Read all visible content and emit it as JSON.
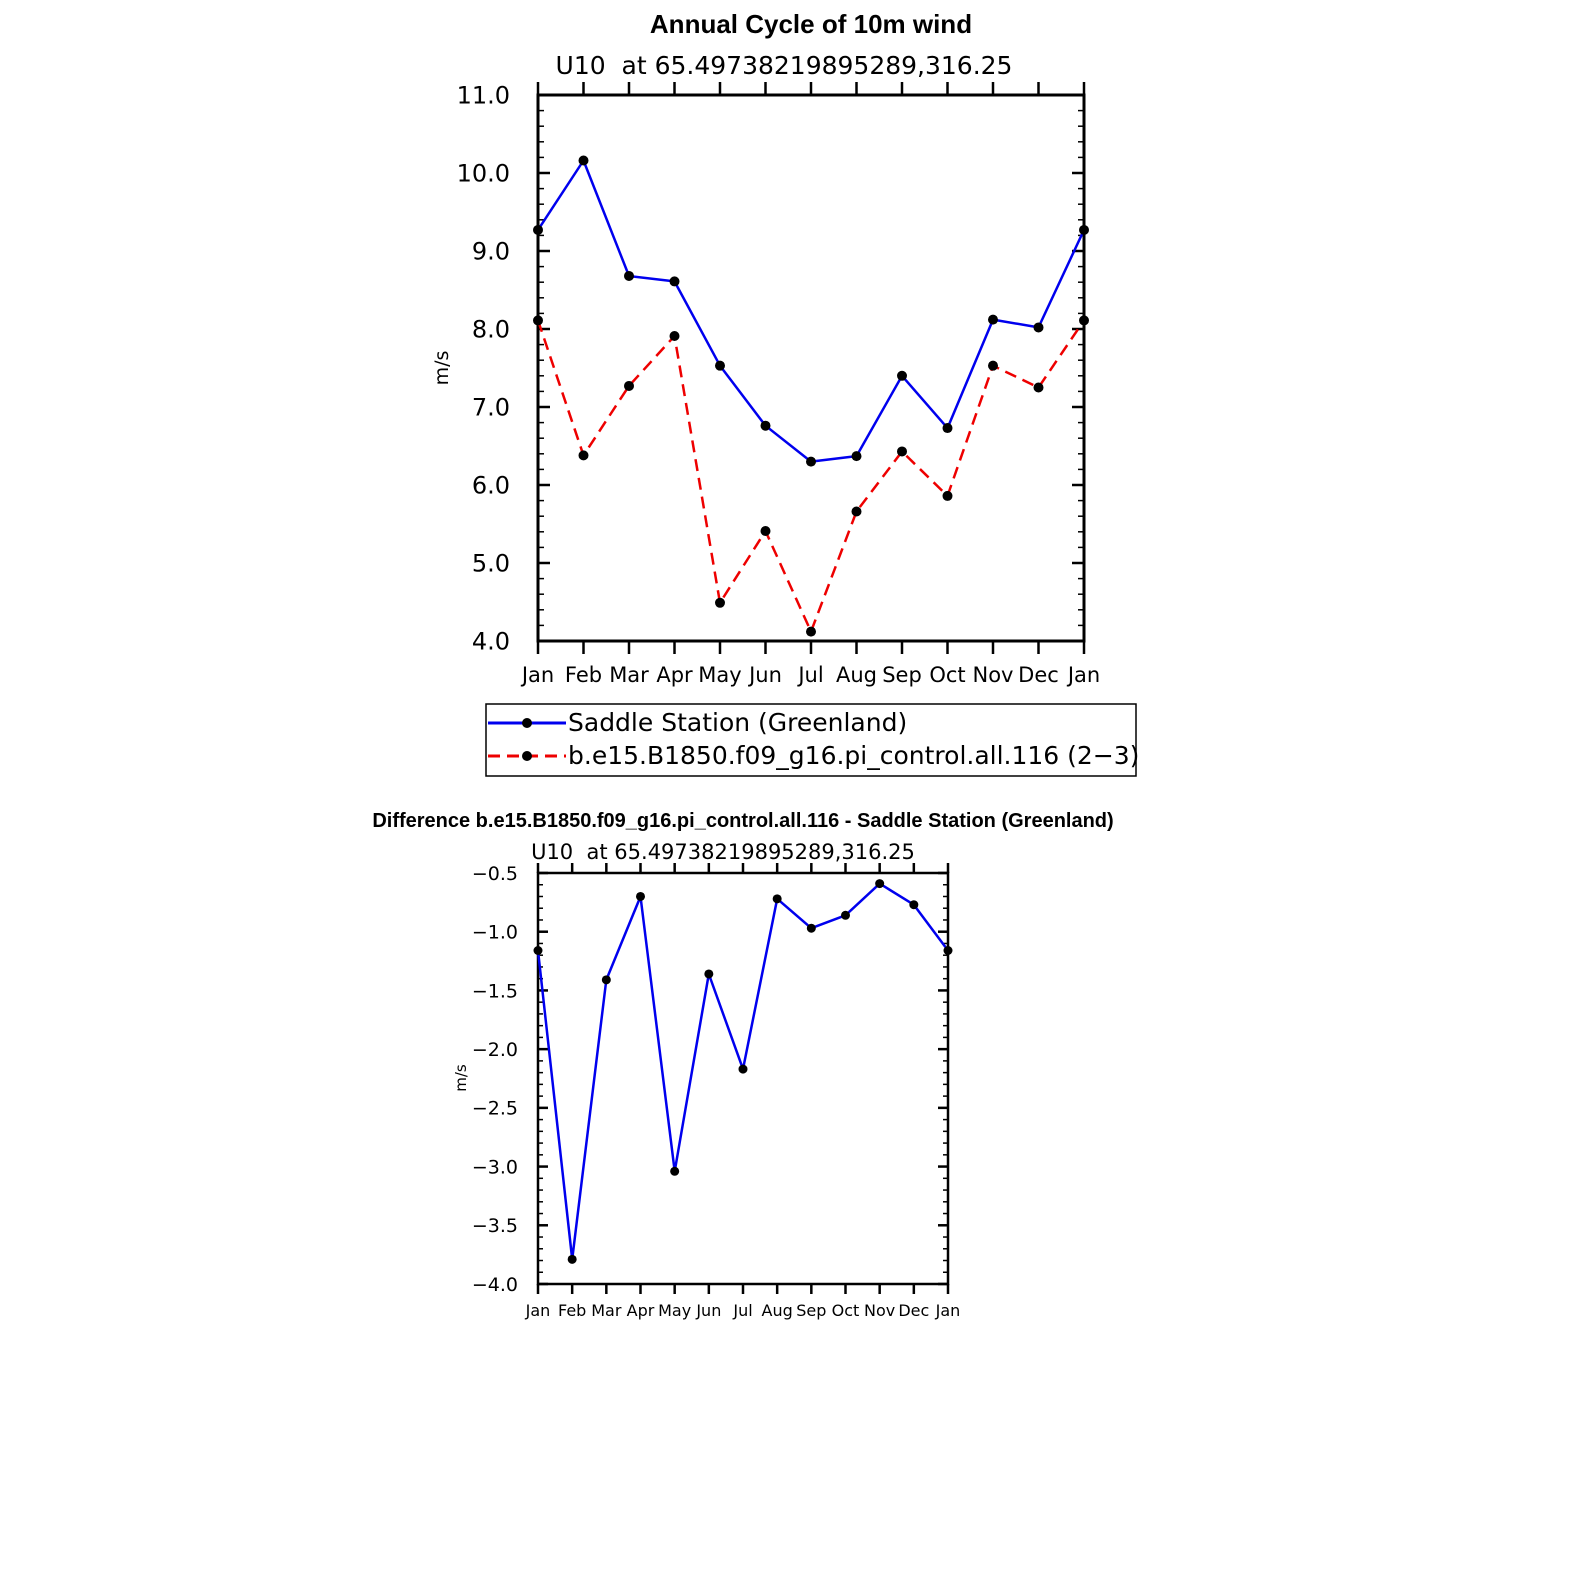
{
  "chart_data": [
    {
      "type": "line",
      "title": "Annual Cycle of 10m wind",
      "subtitle": "U10  at 65.49738219895289,316.25",
      "ylabel": "m/s",
      "xlabel": "",
      "ylim": [
        4.0,
        11.0
      ],
      "y_ticks": [
        "4.0",
        "5.0",
        "6.0",
        "7.0",
        "8.0",
        "9.0",
        "10.0",
        "11.0"
      ],
      "categories": [
        "Jan",
        "Feb",
        "Mar",
        "Apr",
        "May",
        "Jun",
        "Jul",
        "Aug",
        "Sep",
        "Oct",
        "Nov",
        "Dec",
        "Jan"
      ],
      "legend_position": "bottom",
      "series": [
        {
          "name": "Saddle Station (Greenland)",
          "color": "#0000ee",
          "dash": "solid",
          "values": [
            9.27,
            10.16,
            8.68,
            8.61,
            7.53,
            6.76,
            6.3,
            6.37,
            7.4,
            6.73,
            8.12,
            8.02,
            9.27
          ]
        },
        {
          "name": "b.e15.B1850.f09_g16.pi_control.all.116 (2−3)",
          "color": "#ee0000",
          "dash": "dashed",
          "values": [
            8.11,
            6.38,
            7.27,
            7.91,
            4.49,
            5.41,
            4.12,
            5.66,
            6.43,
            5.86,
            7.53,
            7.25,
            8.11
          ]
        }
      ]
    },
    {
      "type": "line",
      "title": "Difference b.e15.B1850.f09_g16.pi_control.all.116 - Saddle Station (Greenland)",
      "subtitle": "U10  at 65.49738219895289,316.25",
      "ylabel": "m/s",
      "xlabel": "",
      "ylim": [
        -4.0,
        -0.5
      ],
      "y_ticks": [
        "−4.0",
        "−3.5",
        "−3.0",
        "−2.5",
        "−2.0",
        "−1.5",
        "−1.0",
        "−0.5"
      ],
      "categories": [
        "Jan",
        "Feb",
        "Mar",
        "Apr",
        "May",
        "Jun",
        "Jul",
        "Aug",
        "Sep",
        "Oct",
        "Nov",
        "Dec",
        "Jan"
      ],
      "series": [
        {
          "color": "#0000ee",
          "dash": "solid",
          "values": [
            -1.16,
            -3.79,
            -1.41,
            -0.7,
            -3.04,
            -1.36,
            -2.17,
            -0.72,
            -0.97,
            -0.86,
            -0.59,
            -0.77,
            -1.16
          ]
        }
      ]
    }
  ]
}
